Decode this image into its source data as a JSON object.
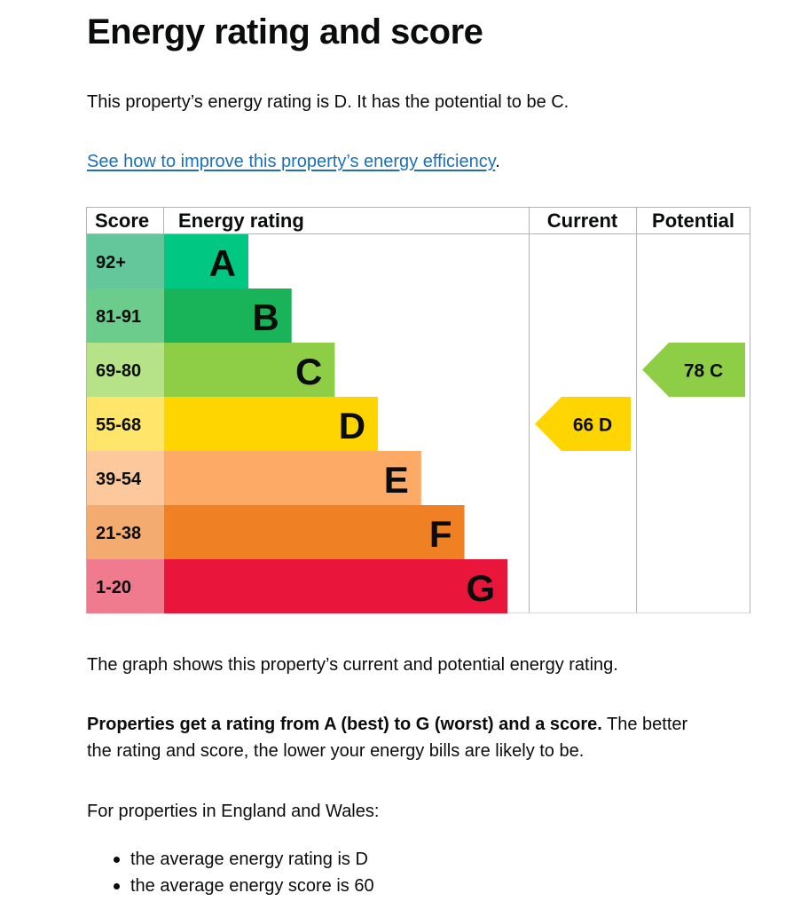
{
  "heading": "Energy rating and score",
  "intro": "This property’s energy rating is D. It has the potential to be C.",
  "improve_link": "See how to improve this property’s energy efficiency",
  "improve_suffix": ".",
  "chart_data": {
    "type": "table",
    "columns": [
      "Score",
      "Energy rating",
      "Current",
      "Potential"
    ],
    "bands": [
      {
        "score": "92+",
        "letter": "A",
        "bar_color": "#00c781",
        "score_color": "#64c79c"
      },
      {
        "score": "81-91",
        "letter": "B",
        "bar_color": "#19b459",
        "score_color": "#6ccc8c"
      },
      {
        "score": "69-80",
        "letter": "C",
        "bar_color": "#8dce46",
        "score_color": "#b6e288"
      },
      {
        "score": "55-68",
        "letter": "D",
        "bar_color": "#ffd500",
        "score_color": "#ffe56a"
      },
      {
        "score": "39-54",
        "letter": "E",
        "bar_color": "#fcaa65",
        "score_color": "#fdc89c"
      },
      {
        "score": "21-38",
        "letter": "F",
        "bar_color": "#ef8023",
        "score_color": "#f4ab6f"
      },
      {
        "score": "1-20",
        "letter": "G",
        "bar_color": "#e9153b",
        "score_color": "#f07a8e"
      }
    ],
    "current": {
      "score": 66,
      "letter": "D",
      "label": "66 D",
      "color": "#ffd500"
    },
    "potential": {
      "score": 78,
      "letter": "C",
      "label": "78 C",
      "color": "#8dce46"
    }
  },
  "graph_text": "The graph shows this property’s current and potential energy rating.",
  "rating_bold": "Properties get a rating from A (best) to G (worst) and a score.",
  "rating_rest_1": " The better",
  "rating_rest_2": "the rating and score, the lower your energy bills are likely to be.",
  "england_wales": "For properties in England and Wales:",
  "averages": [
    "the average energy rating is D",
    "the average energy score is 60"
  ]
}
